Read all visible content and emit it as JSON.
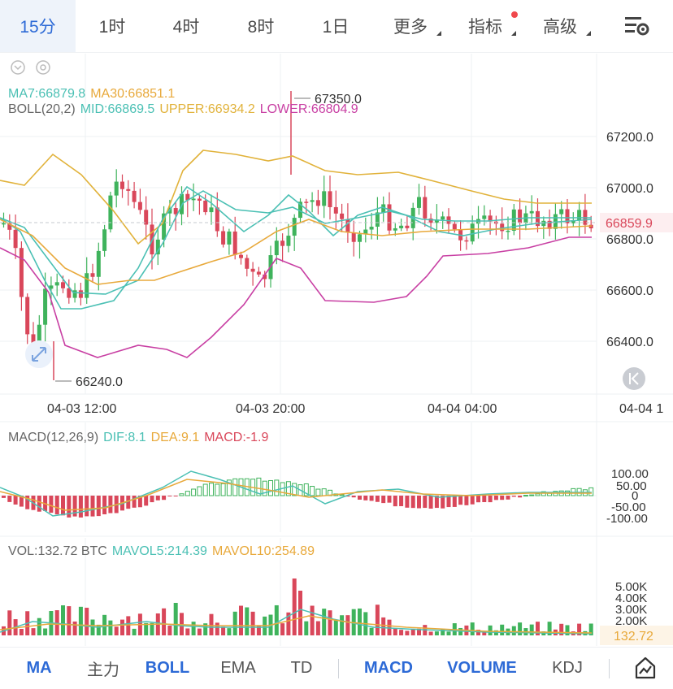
{
  "timeframes": [
    {
      "label": "15分",
      "active": true,
      "arrow": false,
      "dot": false,
      "w": 93
    },
    {
      "label": "1时",
      "active": false,
      "arrow": false,
      "dot": false,
      "w": 90
    },
    {
      "label": "4时",
      "active": false,
      "arrow": false,
      "dot": false,
      "w": 92
    },
    {
      "label": "8时",
      "active": false,
      "arrow": false,
      "dot": false,
      "w": 92
    },
    {
      "label": "1日",
      "active": false,
      "arrow": false,
      "dot": false,
      "w": 92
    },
    {
      "label": "更多",
      "active": false,
      "arrow": true,
      "dot": false,
      "w": 92
    },
    {
      "label": "指标",
      "active": false,
      "arrow": true,
      "dot": true,
      "w": 92
    },
    {
      "label": "高级",
      "active": false,
      "arrow": true,
      "dot": false,
      "w": 92
    }
  ],
  "settings_icon": "chart-settings-icon",
  "ma_legend": {
    "ma7": "MA7:66879.8",
    "ma30": "MA30:66851.1"
  },
  "boll_legend": {
    "name": "BOLL(20,2)",
    "mid": "MID:66869.5",
    "upper": "UPPER:66934.2",
    "lower": "LOWER:66804.9"
  },
  "price_axis": [
    "67200.0",
    "67000.0",
    "66800.0",
    "66600.0",
    "66400.0"
  ],
  "current_price": "66859.9",
  "max_label": "67350.0",
  "min_label": "66240.0",
  "time_axis": [
    "04-03 12:00",
    "04-03 20:00",
    "04-04 04:00",
    "04-04 1"
  ],
  "macd_legend": {
    "name": "MACD(12,26,9)",
    "dif": "DIF:8.1",
    "dea": "DEA:9.1",
    "macd": "MACD:-1.9"
  },
  "macd_axis": [
    "100.00",
    "50.00",
    "0",
    "-50.00",
    "-100.00"
  ],
  "vol_legend": {
    "name": "VOL:132.72 BTC",
    "mavol5": "MAVOL5:214.39",
    "mavol10": "MAVOL10:254.89"
  },
  "vol_axis": [
    "5.00K",
    "4.00K",
    "3.00K",
    "2.00K"
  ],
  "vol_current": "132.72",
  "bottom_tabs": [
    {
      "label": "MA",
      "on": true,
      "w": 96
    },
    {
      "label": "主力",
      "on": false,
      "w": 62
    },
    {
      "label": "BOLL",
      "on": true,
      "w": 96
    },
    {
      "label": "EMA",
      "on": false,
      "w": 78
    },
    {
      "label": "TD",
      "on": false,
      "w": 78
    },
    {
      "label": "|",
      "sep": true
    },
    {
      "label": "MACD",
      "on": true,
      "w": 110
    },
    {
      "label": "VOLUME",
      "on": true,
      "w": 120
    },
    {
      "label": "KDJ",
      "on": false,
      "w": 90
    },
    {
      "label": "|",
      "sep": true
    }
  ],
  "colors": {
    "up": "#3fb35c",
    "down": "#d9475a",
    "ma7": "#4bc0b4",
    "ma30": "#e8a93b",
    "mid": "#4bc0b4",
    "upper": "#e1b23a",
    "lower": "#c83fa3",
    "dif": "#4bc0b4",
    "dea": "#e8a93b",
    "grid": "#eef0f3",
    "active": "#2d6ad6"
  }
}
